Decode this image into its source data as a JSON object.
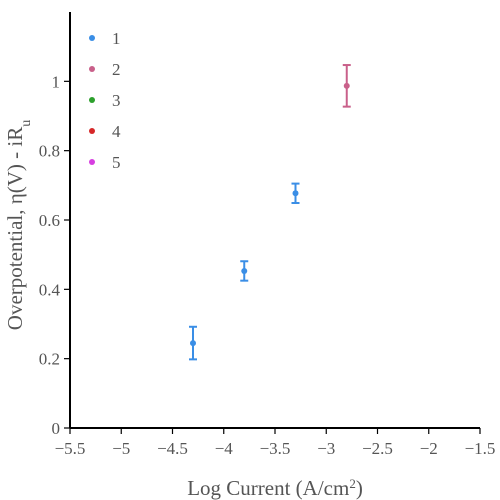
{
  "chart_data": {
    "type": "scatter",
    "xlabel": "Log Current (A/cm",
    "xlabel_sup": "2",
    "xlabel_end": ")",
    "ylabel": "Overpotential, η(V) - iR",
    "ylabel_sub": "u",
    "xlim": [
      -5.5,
      -1.5
    ],
    "ylim": [
      0,
      1.2
    ],
    "x_ticks": [
      -5.5,
      -5,
      -4.5,
      -4,
      -3.5,
      -3,
      -2.5,
      -2,
      -1.5
    ],
    "x_tick_labels": [
      "−5.5",
      "−5",
      "−4.5",
      "−4",
      "−3.5",
      "−3",
      "−2.5",
      "−2",
      "−1.5"
    ],
    "y_ticks": [
      0,
      0.2,
      0.4,
      0.6,
      0.8,
      1
    ],
    "y_tick_labels": [
      "0",
      "0.2",
      "0.4",
      "0.6",
      "0.8",
      "1"
    ],
    "grid": false,
    "legend_position": "top-left",
    "series": [
      {
        "name": "1",
        "color": "#3a8ee6",
        "points": [
          {
            "x": -4.3,
            "y": 0.245,
            "err": 0.047
          },
          {
            "x": -3.8,
            "y": 0.453,
            "err": 0.028
          },
          {
            "x": -3.3,
            "y": 0.677,
            "err": 0.028
          }
        ]
      },
      {
        "name": "2",
        "color": "#c9608a",
        "points": [
          {
            "x": -2.8,
            "y": 0.987,
            "err": 0.06
          }
        ]
      },
      {
        "name": "3",
        "color": "#2ca02c",
        "points": []
      },
      {
        "name": "4",
        "color": "#d62728",
        "points": []
      },
      {
        "name": "5",
        "color": "#d63ee0",
        "points": []
      }
    ]
  }
}
